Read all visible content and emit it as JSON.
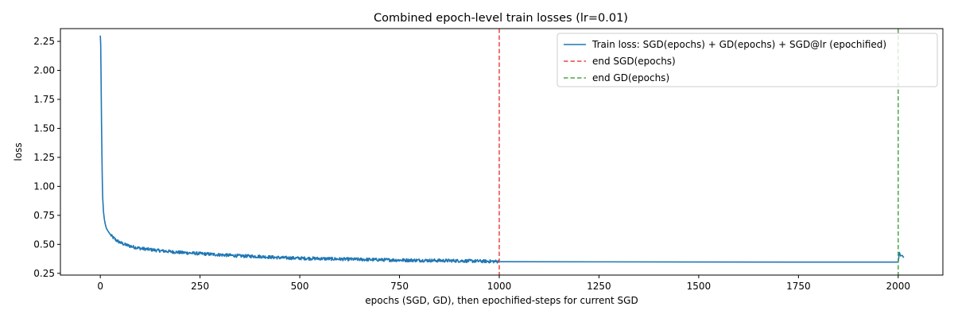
{
  "chart_data": {
    "type": "line",
    "title": "Combined epoch-level train losses (lr=0.01)",
    "xlabel": "epochs (SGD, GD), then epochified-steps for current SGD",
    "ylabel": "loss",
    "xlim": [
      -100,
      2112
    ],
    "ylim": [
      0.235,
      2.36
    ],
    "xticks": [
      0,
      250,
      500,
      750,
      1000,
      1250,
      1500,
      1750,
      2000
    ],
    "xtick_labels": [
      "0",
      "250",
      "500",
      "750",
      "1000",
      "1250",
      "1500",
      "1750",
      "2000"
    ],
    "yticks": [
      0.25,
      0.5,
      0.75,
      1.0,
      1.25,
      1.5,
      1.75,
      2.0,
      2.25
    ],
    "ytick_labels": [
      "0.25",
      "0.50",
      "0.75",
      "1.00",
      "1.25",
      "1.50",
      "1.75",
      "2.00",
      "2.25"
    ],
    "grid": false,
    "legend_position": "top-right",
    "series": [
      {
        "name": "Train loss: SGD(epochs) + GD(epochs) + SGD@lr (epochified)",
        "color": "#1f77b4",
        "style": "solid",
        "x": [
          0,
          1,
          2,
          3,
          4,
          5,
          6,
          8,
          10,
          12,
          15,
          20,
          25,
          30,
          40,
          50,
          60,
          80,
          100,
          125,
          150,
          200,
          250,
          300,
          350,
          400,
          450,
          500,
          550,
          600,
          650,
          700,
          750,
          800,
          850,
          900,
          950,
          999,
          1000,
          1250,
          1500,
          1750,
          1999,
          2000,
          2003,
          2006,
          2010,
          2014
        ],
        "y": [
          2.3,
          2.22,
          1.9,
          1.55,
          1.28,
          1.05,
          0.9,
          0.78,
          0.72,
          0.68,
          0.64,
          0.61,
          0.585,
          0.565,
          0.535,
          0.515,
          0.5,
          0.48,
          0.465,
          0.455,
          0.445,
          0.43,
          0.42,
          0.41,
          0.4,
          0.395,
          0.385,
          0.38,
          0.377,
          0.373,
          0.37,
          0.367,
          0.364,
          0.362,
          0.36,
          0.358,
          0.355,
          0.352,
          0.35,
          0.349,
          0.348,
          0.347,
          0.347,
          0.345,
          0.43,
          0.4,
          0.405,
          0.385
        ]
      },
      {
        "name": "end SGD(epochs)",
        "color": "#e8474a",
        "style": "dashed",
        "x_value": 1000
      },
      {
        "name": "end GD(epochs)",
        "color": "#4aa54a",
        "style": "dashed",
        "x_value": 2000
      }
    ]
  }
}
